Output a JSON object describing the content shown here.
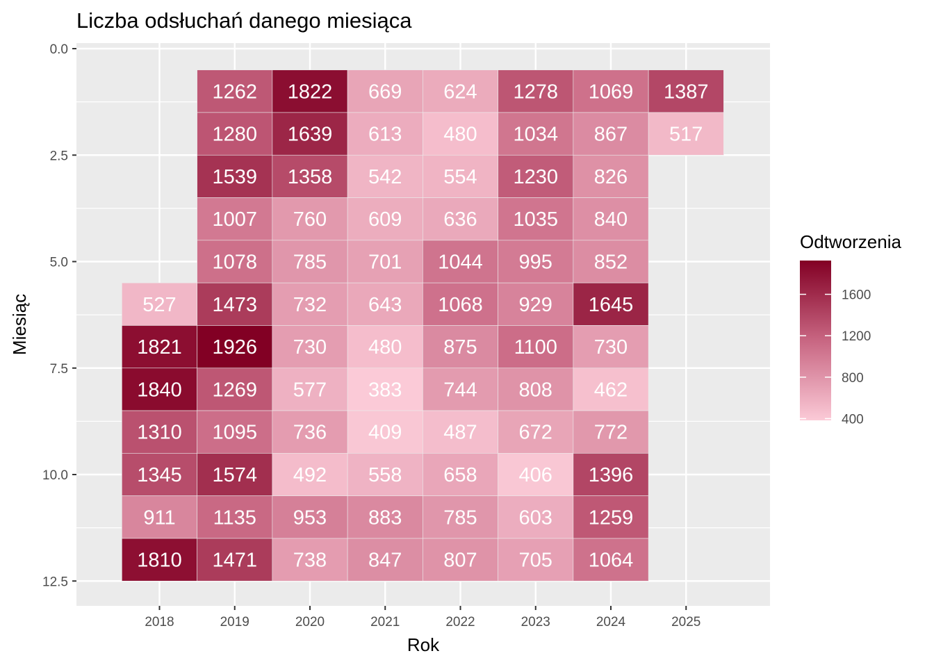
{
  "chart_data": {
    "type": "heatmap",
    "title": "Liczba odsłuchań danego miesiąca",
    "xlabel": "Rok",
    "ylabel": "Miesiąc",
    "x_ticks": [
      "2018",
      "2019",
      "2020",
      "2021",
      "2022",
      "2023",
      "2024",
      "2025"
    ],
    "y_ticks": [
      "0.0",
      "2.5",
      "5.0",
      "7.5",
      "10.0",
      "12.5"
    ],
    "y_tick_values": [
      0,
      2.5,
      5,
      7.5,
      10,
      12.5
    ],
    "ylim": [
      0,
      12.5
    ],
    "y_reversed": true,
    "legend": {
      "title": "Odtworzenia",
      "labels": [
        "1600",
        "1200",
        "800",
        "400"
      ],
      "values": [
        1600,
        1200,
        800,
        400
      ],
      "range": [
        383,
        1926
      ],
      "color_low": "#fbcad7",
      "color_high": "#820024"
    },
    "grid": true,
    "panel_background": "#ebebeb",
    "cells": [
      {
        "year": 2019,
        "month": 1,
        "value": 1262
      },
      {
        "year": 2020,
        "month": 1,
        "value": 1822
      },
      {
        "year": 2021,
        "month": 1,
        "value": 669
      },
      {
        "year": 2022,
        "month": 1,
        "value": 624
      },
      {
        "year": 2023,
        "month": 1,
        "value": 1278
      },
      {
        "year": 2024,
        "month": 1,
        "value": 1069
      },
      {
        "year": 2025,
        "month": 1,
        "value": 1387
      },
      {
        "year": 2019,
        "month": 2,
        "value": 1280
      },
      {
        "year": 2020,
        "month": 2,
        "value": 1639
      },
      {
        "year": 2021,
        "month": 2,
        "value": 613
      },
      {
        "year": 2022,
        "month": 2,
        "value": 480
      },
      {
        "year": 2023,
        "month": 2,
        "value": 1034
      },
      {
        "year": 2024,
        "month": 2,
        "value": 867
      },
      {
        "year": 2025,
        "month": 2,
        "value": 517
      },
      {
        "year": 2019,
        "month": 3,
        "value": 1539
      },
      {
        "year": 2020,
        "month": 3,
        "value": 1358
      },
      {
        "year": 2021,
        "month": 3,
        "value": 542
      },
      {
        "year": 2022,
        "month": 3,
        "value": 554
      },
      {
        "year": 2023,
        "month": 3,
        "value": 1230
      },
      {
        "year": 2024,
        "month": 3,
        "value": 826
      },
      {
        "year": 2019,
        "month": 4,
        "value": 1007
      },
      {
        "year": 2020,
        "month": 4,
        "value": 760
      },
      {
        "year": 2021,
        "month": 4,
        "value": 609
      },
      {
        "year": 2022,
        "month": 4,
        "value": 636
      },
      {
        "year": 2023,
        "month": 4,
        "value": 1035
      },
      {
        "year": 2024,
        "month": 4,
        "value": 840
      },
      {
        "year": 2019,
        "month": 5,
        "value": 1078
      },
      {
        "year": 2020,
        "month": 5,
        "value": 785
      },
      {
        "year": 2021,
        "month": 5,
        "value": 701
      },
      {
        "year": 2022,
        "month": 5,
        "value": 1044
      },
      {
        "year": 2023,
        "month": 5,
        "value": 995
      },
      {
        "year": 2024,
        "month": 5,
        "value": 852
      },
      {
        "year": 2018,
        "month": 6,
        "value": 527
      },
      {
        "year": 2019,
        "month": 6,
        "value": 1473
      },
      {
        "year": 2020,
        "month": 6,
        "value": 732
      },
      {
        "year": 2021,
        "month": 6,
        "value": 643
      },
      {
        "year": 2022,
        "month": 6,
        "value": 1068
      },
      {
        "year": 2023,
        "month": 6,
        "value": 929
      },
      {
        "year": 2024,
        "month": 6,
        "value": 1645
      },
      {
        "year": 2018,
        "month": 7,
        "value": 1821
      },
      {
        "year": 2019,
        "month": 7,
        "value": 1926
      },
      {
        "year": 2020,
        "month": 7,
        "value": 730
      },
      {
        "year": 2021,
        "month": 7,
        "value": 480
      },
      {
        "year": 2022,
        "month": 7,
        "value": 875
      },
      {
        "year": 2023,
        "month": 7,
        "value": 1100
      },
      {
        "year": 2024,
        "month": 7,
        "value": 730
      },
      {
        "year": 2018,
        "month": 8,
        "value": 1840
      },
      {
        "year": 2019,
        "month": 8,
        "value": 1269
      },
      {
        "year": 2020,
        "month": 8,
        "value": 577
      },
      {
        "year": 2021,
        "month": 8,
        "value": 383
      },
      {
        "year": 2022,
        "month": 8,
        "value": 744
      },
      {
        "year": 2023,
        "month": 8,
        "value": 808
      },
      {
        "year": 2024,
        "month": 8,
        "value": 462
      },
      {
        "year": 2018,
        "month": 9,
        "value": 1310
      },
      {
        "year": 2019,
        "month": 9,
        "value": 1095
      },
      {
        "year": 2020,
        "month": 9,
        "value": 736
      },
      {
        "year": 2021,
        "month": 9,
        "value": 409
      },
      {
        "year": 2022,
        "month": 9,
        "value": 487
      },
      {
        "year": 2023,
        "month": 9,
        "value": 672
      },
      {
        "year": 2024,
        "month": 9,
        "value": 772
      },
      {
        "year": 2018,
        "month": 10,
        "value": 1345
      },
      {
        "year": 2019,
        "month": 10,
        "value": 1574
      },
      {
        "year": 2020,
        "month": 10,
        "value": 492
      },
      {
        "year": 2021,
        "month": 10,
        "value": 558
      },
      {
        "year": 2022,
        "month": 10,
        "value": 658
      },
      {
        "year": 2023,
        "month": 10,
        "value": 406
      },
      {
        "year": 2024,
        "month": 10,
        "value": 1396
      },
      {
        "year": 2018,
        "month": 11,
        "value": 911
      },
      {
        "year": 2019,
        "month": 11,
        "value": 1135
      },
      {
        "year": 2020,
        "month": 11,
        "value": 953
      },
      {
        "year": 2021,
        "month": 11,
        "value": 883
      },
      {
        "year": 2022,
        "month": 11,
        "value": 785
      },
      {
        "year": 2023,
        "month": 11,
        "value": 603
      },
      {
        "year": 2024,
        "month": 11,
        "value": 1259
      },
      {
        "year": 2018,
        "month": 12,
        "value": 1810
      },
      {
        "year": 2019,
        "month": 12,
        "value": 1471
      },
      {
        "year": 2020,
        "month": 12,
        "value": 738
      },
      {
        "year": 2021,
        "month": 12,
        "value": 847
      },
      {
        "year": 2022,
        "month": 12,
        "value": 807
      },
      {
        "year": 2023,
        "month": 12,
        "value": 705
      },
      {
        "year": 2024,
        "month": 12,
        "value": 1064
      }
    ]
  }
}
